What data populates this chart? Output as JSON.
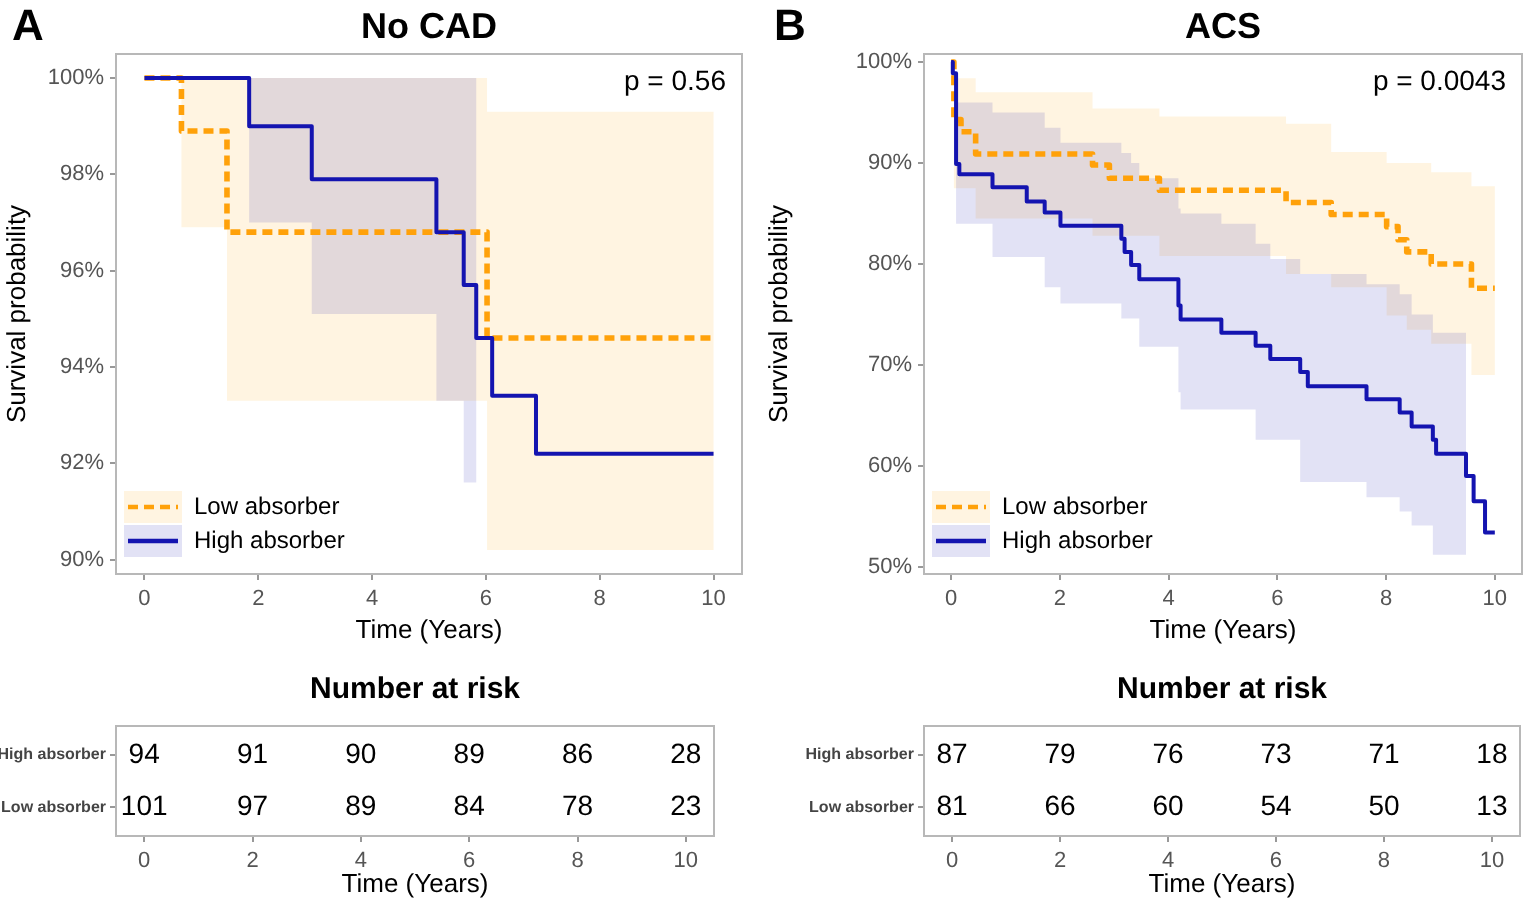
{
  "chart_data": [
    {
      "type": "line",
      "title": "No CAD",
      "xlabel": "Time (Years)",
      "ylabel": "Survival probability",
      "annotations": [
        "A",
        "p = 0.56"
      ],
      "legend": "bottom left",
      "xlim": [
        -0.5,
        10.5
      ],
      "xticks": [
        0,
        2,
        4,
        6,
        8,
        10
      ],
      "ylim": [
        89.7,
        100.5
      ],
      "yticks": [
        {
          "value": 90,
          "label": "90%"
        },
        {
          "value": 92,
          "label": "92%"
        },
        {
          "value": 94,
          "label": "94%"
        },
        {
          "value": 96,
          "label": "96%"
        },
        {
          "value": 98,
          "label": "98%"
        },
        {
          "value": 100,
          "label": "100%"
        }
      ],
      "series": [
        {
          "name": "Low absorber",
          "color": "#ffa10a",
          "line_style": "dashed",
          "x": [
            0,
            0.65,
            0.65,
            1.45,
            1.45,
            6.02,
            6.02,
            10
          ],
          "values": [
            100,
            100,
            98.9,
            98.9,
            96.8,
            96.8,
            94.6,
            94.6
          ],
          "lower": [
            null,
            null,
            96.9,
            96.9,
            93.3,
            93.3,
            90.2,
            90.2
          ],
          "upper": [
            null,
            null,
            100,
            100,
            100,
            100,
            99.3,
            99.3
          ]
        },
        {
          "name": "High absorber",
          "color": "#1414b0",
          "line_style": "solid",
          "x": [
            0,
            1.84,
            1.84,
            2.94,
            2.94,
            5.13,
            5.13,
            5.61,
            5.61,
            5.83,
            5.83,
            6.11,
            6.11,
            6.88,
            6.88,
            10
          ],
          "values": [
            100,
            100,
            99.0,
            99.0,
            97.9,
            97.9,
            96.8,
            96.8,
            95.7,
            95.7,
            94.6,
            94.6,
            93.4,
            93.4,
            92.2,
            92.2
          ],
          "lower": [
            null,
            null,
            97.0,
            97.0,
            95.1,
            95.1,
            93.3,
            93.3,
            91.6,
            91.6,
            null,
            null,
            null,
            null,
            null,
            null
          ],
          "upper": [
            null,
            null,
            100,
            100,
            100,
            100,
            100,
            100,
            100,
            100,
            null,
            null,
            null,
            null,
            null,
            null
          ]
        }
      ]
    },
    {
      "type": "line",
      "title": "ACS",
      "xlabel": "Time (Years)",
      "ylabel": "Survival probability",
      "annotations": [
        "B",
        "p = 0.0043"
      ],
      "legend": "bottom left",
      "xlim": [
        -0.5,
        10.5
      ],
      "xticks": [
        0,
        2,
        4,
        6,
        8,
        10
      ],
      "ylim": [
        49.3,
        100.8
      ],
      "yticks": [
        {
          "value": 50,
          "label": "50%"
        },
        {
          "value": 60,
          "label": "60%"
        },
        {
          "value": 70,
          "label": "70%"
        },
        {
          "value": 80,
          "label": "80%"
        },
        {
          "value": 90,
          "label": "90%"
        },
        {
          "value": 100,
          "label": "100%"
        }
      ],
      "series": [
        {
          "name": "Low absorber",
          "color": "#ffa10a",
          "line_style": "dashed",
          "x": [
            0,
            0.05,
            0.05,
            0.18,
            0.18,
            0.45,
            0.45,
            2.6,
            2.6,
            2.91,
            2.91,
            3.83,
            3.83,
            6.16,
            6.16,
            6.99,
            6.99,
            8.01,
            8.01,
            8.22,
            8.22,
            8.38,
            8.38,
            8.83,
            8.83,
            9.57,
            9.57,
            10
          ],
          "values": [
            100,
            100,
            94.3,
            94.3,
            93.1,
            93.1,
            90.9,
            90.9,
            89.8,
            89.8,
            88.5,
            88.5,
            87.3,
            87.3,
            86.1,
            86.1,
            84.9,
            84.9,
            83.7,
            83.7,
            82.4,
            82.4,
            81.2,
            81.2,
            80.0,
            80.0,
            77.6,
            77.6
          ],
          "lower": [
            null,
            null,
            87.5,
            87.5,
            87.5,
            87.5,
            84.5,
            84.5,
            82.8,
            82.8,
            82.8,
            82.8,
            80.8,
            80.8,
            79.0,
            79.0,
            77.7,
            77.7,
            74.9,
            74.9,
            74.9,
            74.9,
            73.5,
            73.5,
            72.1,
            72.1,
            69.0,
            69.0
          ],
          "upper": [
            null,
            null,
            98.4,
            98.4,
            98.4,
            98.4,
            97.0,
            97.0,
            95.4,
            95.4,
            95.4,
            95.4,
            94.6,
            94.6,
            93.9,
            93.9,
            91.1,
            91.1,
            90.0,
            90.0,
            90.0,
            90.0,
            90.0,
            90.0,
            89.1,
            89.1,
            87.7,
            87.7
          ]
        },
        {
          "name": "High absorber",
          "color": "#1414b0",
          "line_style": "solid",
          "x": [
            0,
            0.03,
            0.03,
            0.09,
            0.09,
            0.15,
            0.15,
            0.76,
            0.76,
            1.39,
            1.39,
            1.72,
            1.72,
            2.01,
            2.01,
            3.13,
            3.13,
            3.19,
            3.19,
            3.31,
            3.31,
            3.46,
            3.46,
            4.18,
            4.18,
            4.22,
            4.22,
            4.97,
            4.97,
            5.6,
            5.6,
            5.87,
            5.87,
            6.42,
            6.42,
            6.56,
            6.56,
            7.64,
            7.64,
            8.25,
            8.25,
            8.47,
            8.47,
            8.86,
            8.86,
            8.92,
            8.92,
            9.47,
            9.47,
            9.61,
            9.61,
            9.82,
            9.82,
            10
          ],
          "values": [
            100,
            100,
            98.9,
            98.9,
            89.9,
            89.9,
            88.9,
            88.9,
            87.6,
            87.6,
            86.2,
            86.2,
            85.1,
            85.1,
            83.8,
            83.8,
            82.5,
            82.5,
            81.2,
            81.2,
            79.9,
            79.9,
            78.5,
            78.5,
            75.9,
            75.9,
            74.5,
            74.5,
            73.2,
            73.2,
            71.9,
            71.9,
            70.6,
            70.6,
            69.3,
            69.3,
            67.9,
            67.9,
            66.6,
            66.6,
            65.3,
            65.3,
            63.9,
            63.9,
            62.6,
            62.6,
            61.2,
            61.2,
            59.0,
            59.0,
            56.5,
            56.5,
            53.4,
            53.4
          ],
          "lower": [
            null,
            null,
            null,
            null,
            84.0,
            84.0,
            84.0,
            84.0,
            80.7,
            80.7,
            80.7,
            80.7,
            77.7,
            77.7,
            76.1,
            76.1,
            74.6,
            74.6,
            74.6,
            74.6,
            74.6,
            74.6,
            71.8,
            71.8,
            67.3,
            67.3,
            65.6,
            65.6,
            65.6,
            65.6,
            62.6,
            62.6,
            62.6,
            62.6,
            58.4,
            58.4,
            58.4,
            58.4,
            56.9,
            56.9,
            55.5,
            55.5,
            54.1,
            54.1,
            51.2,
            51.2,
            51.2,
            51.2,
            null,
            null,
            null,
            null,
            null,
            null
          ],
          "upper": [
            null,
            null,
            null,
            null,
            96.0,
            96.0,
            96.0,
            96.0,
            95.0,
            95.0,
            95.0,
            95.0,
            93.5,
            93.5,
            92.0,
            92.0,
            91.0,
            91.0,
            91.0,
            91.0,
            90.0,
            90.0,
            88.5,
            88.5,
            85.5,
            85.5,
            85.0,
            85.0,
            84.0,
            84.0,
            82.0,
            82.0,
            80.5,
            80.5,
            79.0,
            79.0,
            79.0,
            79.0,
            78.0,
            78.0,
            77.0,
            77.0,
            75.0,
            75.0,
            73.2,
            73.2,
            73.2,
            73.2,
            null,
            null,
            null,
            null,
            null,
            null
          ]
        }
      ]
    },
    {
      "type": "heatmap",
      "title": "Number at risk",
      "xlabel": "Time (Years)",
      "categories": [
        "0",
        "2",
        "4",
        "6",
        "8",
        "10"
      ],
      "y_categories": [
        "High absorber",
        "Low absorber"
      ],
      "data_labels": true,
      "cells": [
        [
          94,
          91,
          90,
          89,
          86,
          28
        ],
        [
          101,
          97,
          89,
          84,
          78,
          23
        ]
      ]
    },
    {
      "type": "heatmap",
      "title": "Number at risk",
      "xlabel": "Time (Years)",
      "categories": [
        "0",
        "2",
        "4",
        "6",
        "8",
        "10"
      ],
      "y_categories": [
        "High absorber",
        "Low absorber"
      ],
      "data_labels": true,
      "cells": [
        [
          87,
          79,
          76,
          73,
          71,
          18
        ],
        [
          81,
          66,
          60,
          54,
          50,
          13
        ]
      ]
    }
  ]
}
